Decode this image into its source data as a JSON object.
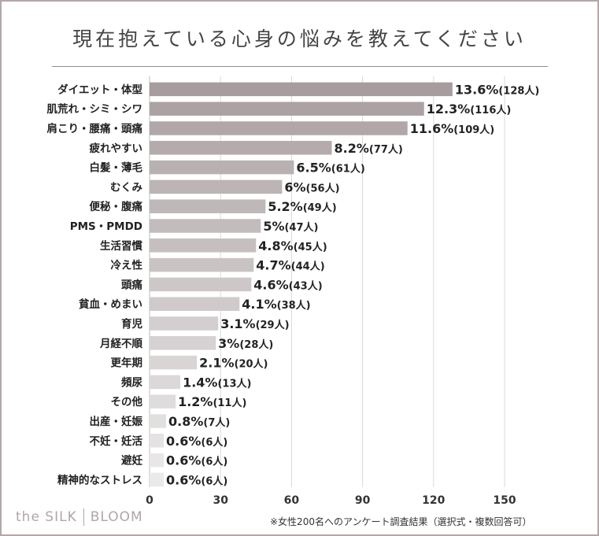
{
  "title": "現在抱えている心身の悩みを教えてください",
  "brand": {
    "left": "the SILK",
    "right": "BLOOM"
  },
  "note": "※女性200名へのアンケート調査結果（選択式・複数回答可）",
  "colors": {
    "border": "#b3a7a9",
    "bar_start": "#a79c9e",
    "bar_end": "#ebe9e9",
    "grid": "#d9d9d9",
    "text": "#222222"
  },
  "chart_data": {
    "type": "bar",
    "orientation": "horizontal",
    "xlim": [
      0,
      150
    ],
    "xticks": [
      0,
      30,
      60,
      90,
      120,
      150
    ],
    "grid": true,
    "categories": [
      "ダイエット・体型",
      "肌荒れ・シミ・シワ",
      "肩こり・腰痛・頭痛",
      "疲れやすい",
      "白髪・薄毛",
      "むくみ",
      "便秘・腹痛",
      "PMS・PMDD",
      "生活習慣",
      "冷え性",
      "頭痛",
      "貧血・めまい",
      "育児",
      "月経不順",
      "更年期",
      "頻尿",
      "その他",
      "出産・妊娠",
      "不妊・妊活",
      "避妊",
      "精神的なストレス"
    ],
    "values": [
      128,
      116,
      109,
      77,
      61,
      56,
      49,
      47,
      45,
      44,
      43,
      38,
      29,
      28,
      20,
      13,
      11,
      7,
      6,
      6,
      6
    ],
    "percents": [
      "13.6%",
      "12.3%",
      "11.6%",
      "8.2%",
      "6.5%",
      "6%",
      "5.2%",
      "5%",
      "4.8%",
      "4.7%",
      "4.6%",
      "4.1%",
      "3.1%",
      "3%",
      "2.1%",
      "1.4%",
      "1.2%",
      "0.8%",
      "0.6%",
      "0.6%",
      "0.6%"
    ],
    "counts": [
      "(128人)",
      "(116人)",
      "(109人)",
      "(77人)",
      "(61人)",
      "(56人)",
      "(49人)",
      "(47人)",
      "(45人)",
      "(44人)",
      "(43人)",
      "(38人)",
      "(29人)",
      "(28人)",
      "(20人)",
      "(13人)",
      "(11人)",
      "(7人)",
      "(6人)",
      "(6人)",
      "(6人)"
    ]
  }
}
